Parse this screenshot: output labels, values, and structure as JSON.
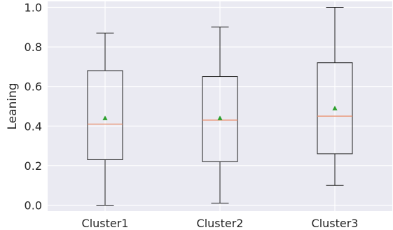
{
  "chart_data": {
    "type": "box",
    "ylabel": "Leaning",
    "xlabel": "",
    "ylim": [
      -0.03,
      1.03
    ],
    "yticks": [
      0.0,
      0.2,
      0.4,
      0.6,
      0.8,
      1.0
    ],
    "ytick_labels": [
      "0.0",
      "0.2",
      "0.4",
      "0.6",
      "0.8",
      "1.0"
    ],
    "grid": true,
    "categories": [
      "Cluster1",
      "Cluster2",
      "Cluster3"
    ],
    "boxes": [
      {
        "category": "Cluster1",
        "whisker_low": 0.0,
        "q1": 0.23,
        "median": 0.41,
        "q3": 0.68,
        "whisker_high": 0.87,
        "mean": 0.44
      },
      {
        "category": "Cluster2",
        "whisker_low": 0.01,
        "q1": 0.22,
        "median": 0.43,
        "q3": 0.65,
        "whisker_high": 0.9,
        "mean": 0.44
      },
      {
        "category": "Cluster3",
        "whisker_low": 0.1,
        "q1": 0.26,
        "median": 0.45,
        "q3": 0.72,
        "whisker_high": 1.0,
        "mean": 0.49
      }
    ],
    "colors": {
      "background": "#eaeaf2",
      "grid": "#ffffff",
      "box": "#1f1f1f",
      "median": "#e98b66",
      "mean": "#2ca02c"
    }
  }
}
